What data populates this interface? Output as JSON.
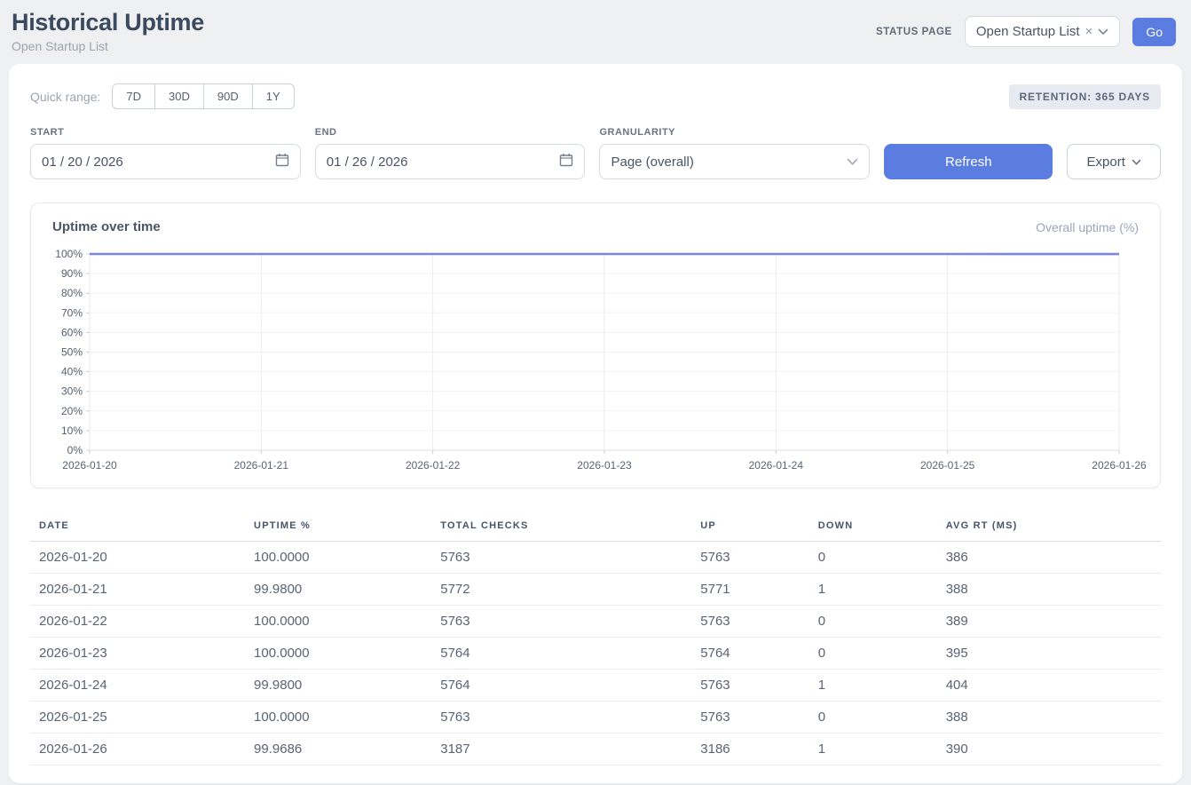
{
  "header": {
    "title": "Historical Uptime",
    "subtitle": "Open Startup List",
    "status_page_label": "STATUS PAGE",
    "status_page_value": "Open Startup List",
    "clear_icon": "×",
    "go_label": "Go"
  },
  "filters": {
    "quick_range_label": "Quick range:",
    "quick_ranges": [
      "7D",
      "30D",
      "90D",
      "1Y"
    ],
    "retention_badge": "RETENTION: 365 DAYS",
    "start_label": "START",
    "start_value": "01 / 20 / 2026",
    "end_label": "END",
    "end_value": "01 / 26 / 2026",
    "granularity_label": "GRANULARITY",
    "granularity_value": "Page (overall)",
    "refresh_label": "Refresh",
    "export_label": "Export"
  },
  "chart_card": {
    "title": "Uptime over time",
    "legend": "Overall uptime (%)"
  },
  "chart_data": {
    "type": "line",
    "title": "Uptime over time",
    "x": [
      "2026-01-20",
      "2026-01-21",
      "2026-01-22",
      "2026-01-23",
      "2026-01-24",
      "2026-01-25",
      "2026-01-26"
    ],
    "series": [
      {
        "name": "Overall uptime (%)",
        "values": [
          100.0,
          99.98,
          100.0,
          100.0,
          99.98,
          100.0,
          99.9686
        ]
      }
    ],
    "xlabel": "",
    "ylabel": "",
    "ylim": [
      0,
      100
    ],
    "ytick_step": 10,
    "ytick_suffix": "%",
    "grid": true,
    "legend_position": "top-right",
    "line_color": "#7d84e8"
  },
  "table": {
    "columns": [
      "DATE",
      "UPTIME %",
      "TOTAL CHECKS",
      "UP",
      "DOWN",
      "AVG RT (MS)"
    ],
    "col_widths": [
      "19%",
      "16.5%",
      "23%",
      "10.4%",
      "11.3%",
      "19.8%"
    ],
    "rows": [
      [
        "2026-01-20",
        "100.0000",
        "5763",
        "5763",
        "0",
        "386"
      ],
      [
        "2026-01-21",
        "99.9800",
        "5772",
        "5771",
        "1",
        "388"
      ],
      [
        "2026-01-22",
        "100.0000",
        "5763",
        "5763",
        "0",
        "389"
      ],
      [
        "2026-01-23",
        "100.0000",
        "5764",
        "5764",
        "0",
        "395"
      ],
      [
        "2026-01-24",
        "99.9800",
        "5764",
        "5763",
        "1",
        "404"
      ],
      [
        "2026-01-25",
        "100.0000",
        "5763",
        "5763",
        "0",
        "388"
      ],
      [
        "2026-01-26",
        "99.9686",
        "3187",
        "3186",
        "1",
        "390"
      ]
    ]
  },
  "colors": {
    "accent_blue": "#5b7de2",
    "line_indigo": "#7d84e8",
    "page_bg": "#eef0f2",
    "badge_bg": "#e7ebf1"
  }
}
